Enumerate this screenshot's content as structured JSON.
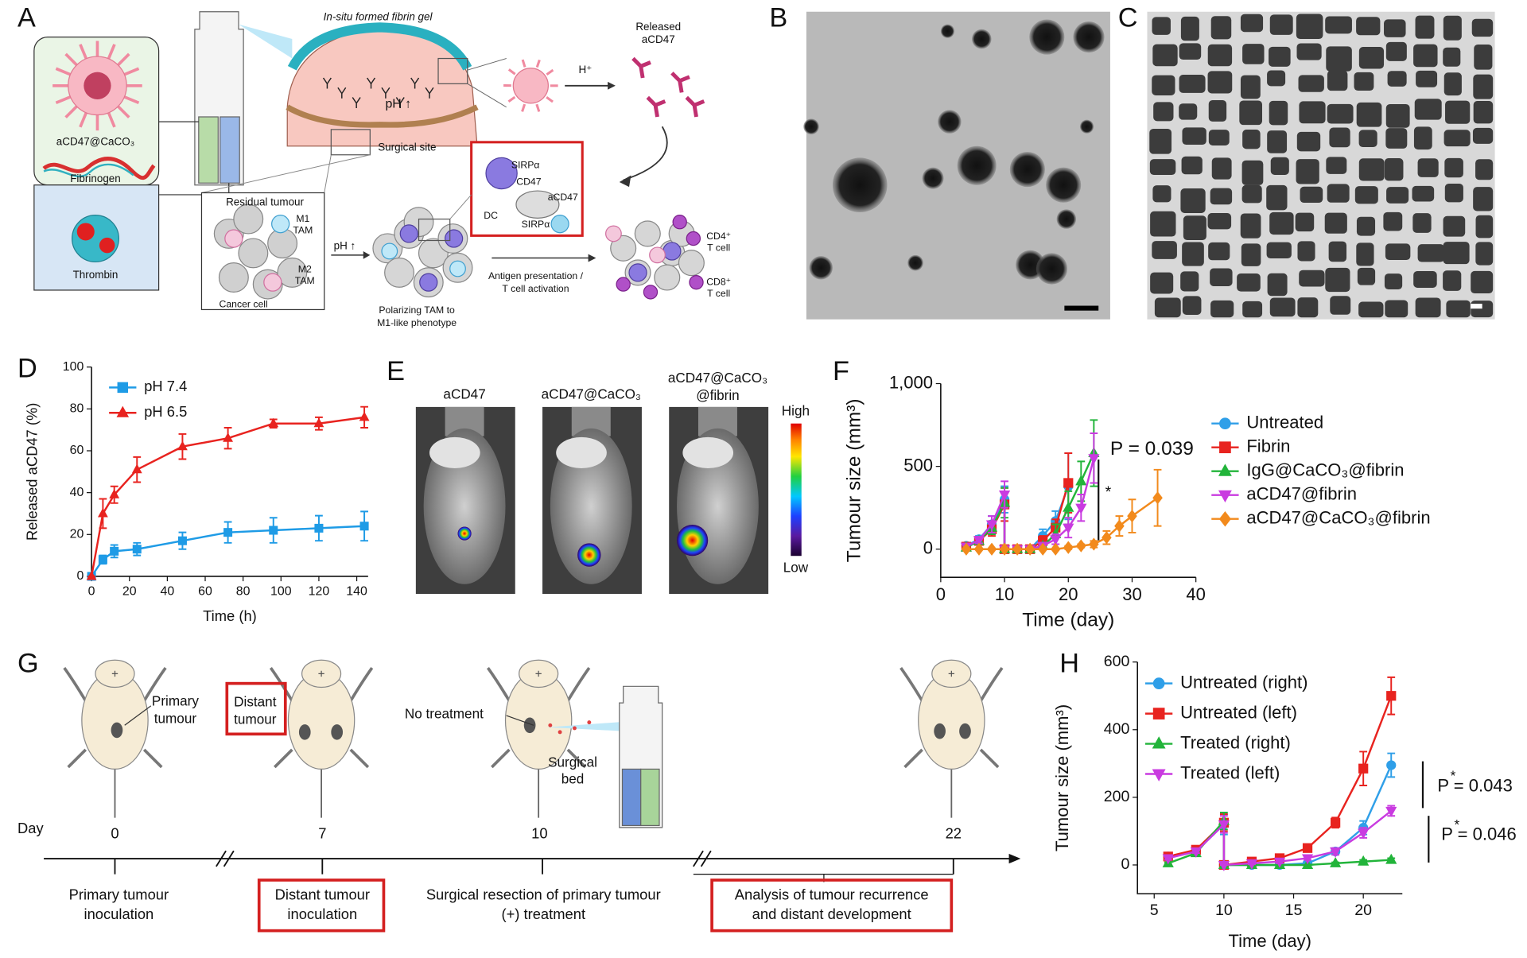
{
  "panel_labels": [
    "A",
    "B",
    "C",
    "D",
    "E",
    "F",
    "G",
    "H"
  ],
  "panel_a": {
    "gel": "In-situ formed fibrin gel",
    "particle": "aCD47@CaCO₃",
    "fibrinogen": "Fibrinogen",
    "thrombin": "Thrombin",
    "released": [
      "Released",
      "aCD47"
    ],
    "proton": "H⁺",
    "ph_site": "pH ↑",
    "surgical_site": "Surgical site",
    "sirpa_1": "SIRPα",
    "dc": "DC",
    "cd47": "CD47",
    "acd47": "aCD47",
    "sirpa_2": "SIRPα",
    "residual": "Residual  tumour",
    "m1": [
      "M1",
      "TAM"
    ],
    "m2": [
      "M2",
      "TAM"
    ],
    "cancer_cell": "Cancer cell",
    "ph_arrow": "pH ↑",
    "polarizing": [
      "Polarizing TAM to",
      "M1-like phenotype"
    ],
    "antigen": [
      "Antigen presentation /",
      "T cell activation"
    ],
    "cd4": [
      "CD4⁺",
      "T cell"
    ],
    "cd8": [
      "CD8⁺",
      "T cell"
    ]
  },
  "panel_e": {
    "labels": [
      [
        "aCD47"
      ],
      [
        "aCD47@CaCO₃"
      ],
      [
        "aCD47@CaCO₃",
        "@fibrin"
      ]
    ],
    "high": "High",
    "low": "Low"
  },
  "panel_g": {
    "day": "Day",
    "days": [
      "0",
      "7",
      "10",
      "22"
    ],
    "primary": [
      "Primary",
      "tumour"
    ],
    "distant": [
      "Distant",
      "tumour"
    ],
    "no_treatment": "No treatment",
    "surgical_bed": [
      "Surgical",
      "bed"
    ],
    "steps": [
      [
        "Primary tumour",
        "inoculation"
      ],
      [
        "Distant tumour",
        "inoculation"
      ],
      [
        "Surgical resection of primary tumour",
        "(+) treatment"
      ],
      [
        "Analysis of tumour recurrence",
        "and distant development"
      ]
    ]
  },
  "chart_data": [
    {
      "type": "line",
      "xlabel": "Time (h)",
      "ylabel": "Released aCD47 (%)",
      "xlim": [
        0,
        146
      ],
      "ylim": [
        0,
        100
      ],
      "xticks": [
        0,
        20,
        40,
        60,
        80,
        100,
        120,
        140
      ],
      "yticks": [
        0,
        20,
        40,
        60,
        80,
        100
      ],
      "legend": "upper left",
      "series": [
        {
          "name": "pH 7.4",
          "color": "#1e9be6",
          "marker": "square",
          "x": [
            0,
            6,
            12,
            24,
            48,
            72,
            96,
            120,
            144
          ],
          "values": [
            0,
            8,
            12,
            13,
            17,
            21,
            22,
            23,
            24
          ],
          "errors": [
            0,
            2,
            3,
            3,
            4,
            5,
            6,
            6,
            7
          ]
        },
        {
          "name": "pH 6.5",
          "color": "#e8231f",
          "marker": "triangle",
          "x": [
            0,
            6,
            12,
            24,
            48,
            72,
            96,
            120,
            144
          ],
          "values": [
            0,
            30,
            39,
            51,
            62,
            66,
            73,
            73,
            76
          ],
          "errors": [
            0,
            7,
            4,
            6,
            6,
            5,
            2,
            3,
            5
          ]
        }
      ]
    },
    {
      "type": "line",
      "xlabel": "Time (day)",
      "ylabel": "Tumour size (mm³)",
      "xlim": [
        0,
        40
      ],
      "ylim": [
        -170,
        1000
      ],
      "xticks": [
        0,
        10,
        20,
        30,
        40
      ],
      "yticks": [
        0,
        500,
        {
          "value": 1000,
          "label": "1,000"
        }
      ],
      "legend": "right",
      "annotations": [
        "P = 0.039",
        "*"
      ],
      "series": [
        {
          "name": "Untreated",
          "color": "#2f9fe8",
          "marker": "circle",
          "x": [
            4,
            6,
            8,
            10,
            10,
            12,
            14,
            16,
            18,
            20
          ],
          "values": [
            20,
            60,
            150,
            300,
            0,
            0,
            0,
            80,
            170,
            380
          ],
          "errors": [
            10,
            20,
            50,
            80,
            0,
            0,
            0,
            40,
            60,
            200
          ]
        },
        {
          "name": "Fibrin",
          "color": "#e8231f",
          "marker": "square",
          "x": [
            4,
            6,
            8,
            10,
            10,
            12,
            14,
            16,
            18,
            20
          ],
          "values": [
            15,
            50,
            120,
            270,
            0,
            0,
            0,
            50,
            130,
            400
          ],
          "errors": [
            10,
            20,
            40,
            100,
            0,
            0,
            0,
            30,
            50,
            180
          ]
        },
        {
          "name": "IgG@CaCO₃@fibrin",
          "color": "#22b43a",
          "marker": "triangle",
          "x": [
            4,
            6,
            8,
            10,
            10,
            12,
            14,
            16,
            18,
            20,
            22,
            24
          ],
          "values": [
            10,
            50,
            130,
            280,
            0,
            0,
            0,
            20,
            90,
            250,
            410,
            580
          ],
          "errors": [
            10,
            20,
            40,
            90,
            0,
            0,
            0,
            20,
            60,
            100,
            120,
            200
          ]
        },
        {
          "name": "aCD47@fibrin",
          "color": "#c93be0",
          "marker": "triangle-down",
          "x": [
            4,
            6,
            8,
            10,
            10,
            12,
            14,
            16,
            18,
            20,
            22,
            24
          ],
          "values": [
            15,
            55,
            150,
            330,
            0,
            0,
            0,
            20,
            60,
            130,
            250,
            550
          ],
          "errors": [
            10,
            20,
            50,
            80,
            0,
            0,
            0,
            20,
            30,
            60,
            80,
            150
          ]
        },
        {
          "name": "aCD47@CaCO₃@fibrin",
          "color": "#f28a1c",
          "marker": "diamond",
          "x": [
            4,
            6,
            8,
            10,
            12,
            14,
            16,
            18,
            20,
            22,
            24,
            26,
            28,
            30,
            34
          ],
          "values": [
            0,
            0,
            0,
            0,
            0,
            0,
            0,
            0,
            10,
            20,
            30,
            70,
            140,
            200,
            310
          ],
          "errors": [
            0,
            0,
            0,
            0,
            0,
            0,
            0,
            0,
            10,
            10,
            20,
            40,
            60,
            100,
            170
          ]
        }
      ]
    },
    {
      "type": "line",
      "xlabel": "Time (day)",
      "ylabel": "Tumour size (mm³)",
      "xlim": [
        3.8,
        22.8
      ],
      "ylim": [
        -85,
        600
      ],
      "xticks": [
        5,
        10,
        15,
        20
      ],
      "yticks": [
        0,
        200,
        400,
        600
      ],
      "legend": "upper left",
      "annotations": [
        "P = 0.043",
        "*",
        "P = 0.046",
        "*"
      ],
      "series": [
        {
          "name": "Untreated (right)",
          "color": "#2f9fe8",
          "marker": "circle",
          "x": [
            6,
            8,
            10,
            10,
            12,
            14,
            16,
            18,
            20,
            22
          ],
          "values": [
            25,
            40,
            120,
            0,
            0,
            0,
            5,
            40,
            110,
            295
          ],
          "errors": [
            5,
            5,
            30,
            0,
            0,
            0,
            5,
            10,
            20,
            35
          ]
        },
        {
          "name": "Untreated (left)",
          "color": "#e8231f",
          "marker": "square",
          "x": [
            6,
            8,
            10,
            10,
            12,
            14,
            16,
            18,
            20,
            22
          ],
          "values": [
            25,
            45,
            125,
            0,
            10,
            20,
            50,
            125,
            285,
            500
          ],
          "errors": [
            5,
            5,
            25,
            0,
            5,
            5,
            10,
            15,
            50,
            55
          ]
        },
        {
          "name": "Treated (right)",
          "color": "#22b43a",
          "marker": "triangle",
          "x": [
            6,
            8,
            10,
            10,
            12,
            14,
            16,
            18,
            20,
            22
          ],
          "values": [
            5,
            35,
            130,
            0,
            0,
            0,
            0,
            5,
            10,
            15
          ],
          "errors": [
            3,
            5,
            25,
            0,
            0,
            0,
            0,
            3,
            5,
            5
          ]
        },
        {
          "name": "Treated (left)",
          "color": "#c93be0",
          "marker": "triangle-down",
          "x": [
            6,
            8,
            10,
            10,
            12,
            14,
            16,
            18,
            20,
            22
          ],
          "values": [
            20,
            40,
            120,
            0,
            5,
            10,
            20,
            40,
            95,
            160
          ],
          "errors": [
            5,
            5,
            25,
            0,
            3,
            5,
            5,
            10,
            15,
            15
          ]
        }
      ]
    }
  ]
}
